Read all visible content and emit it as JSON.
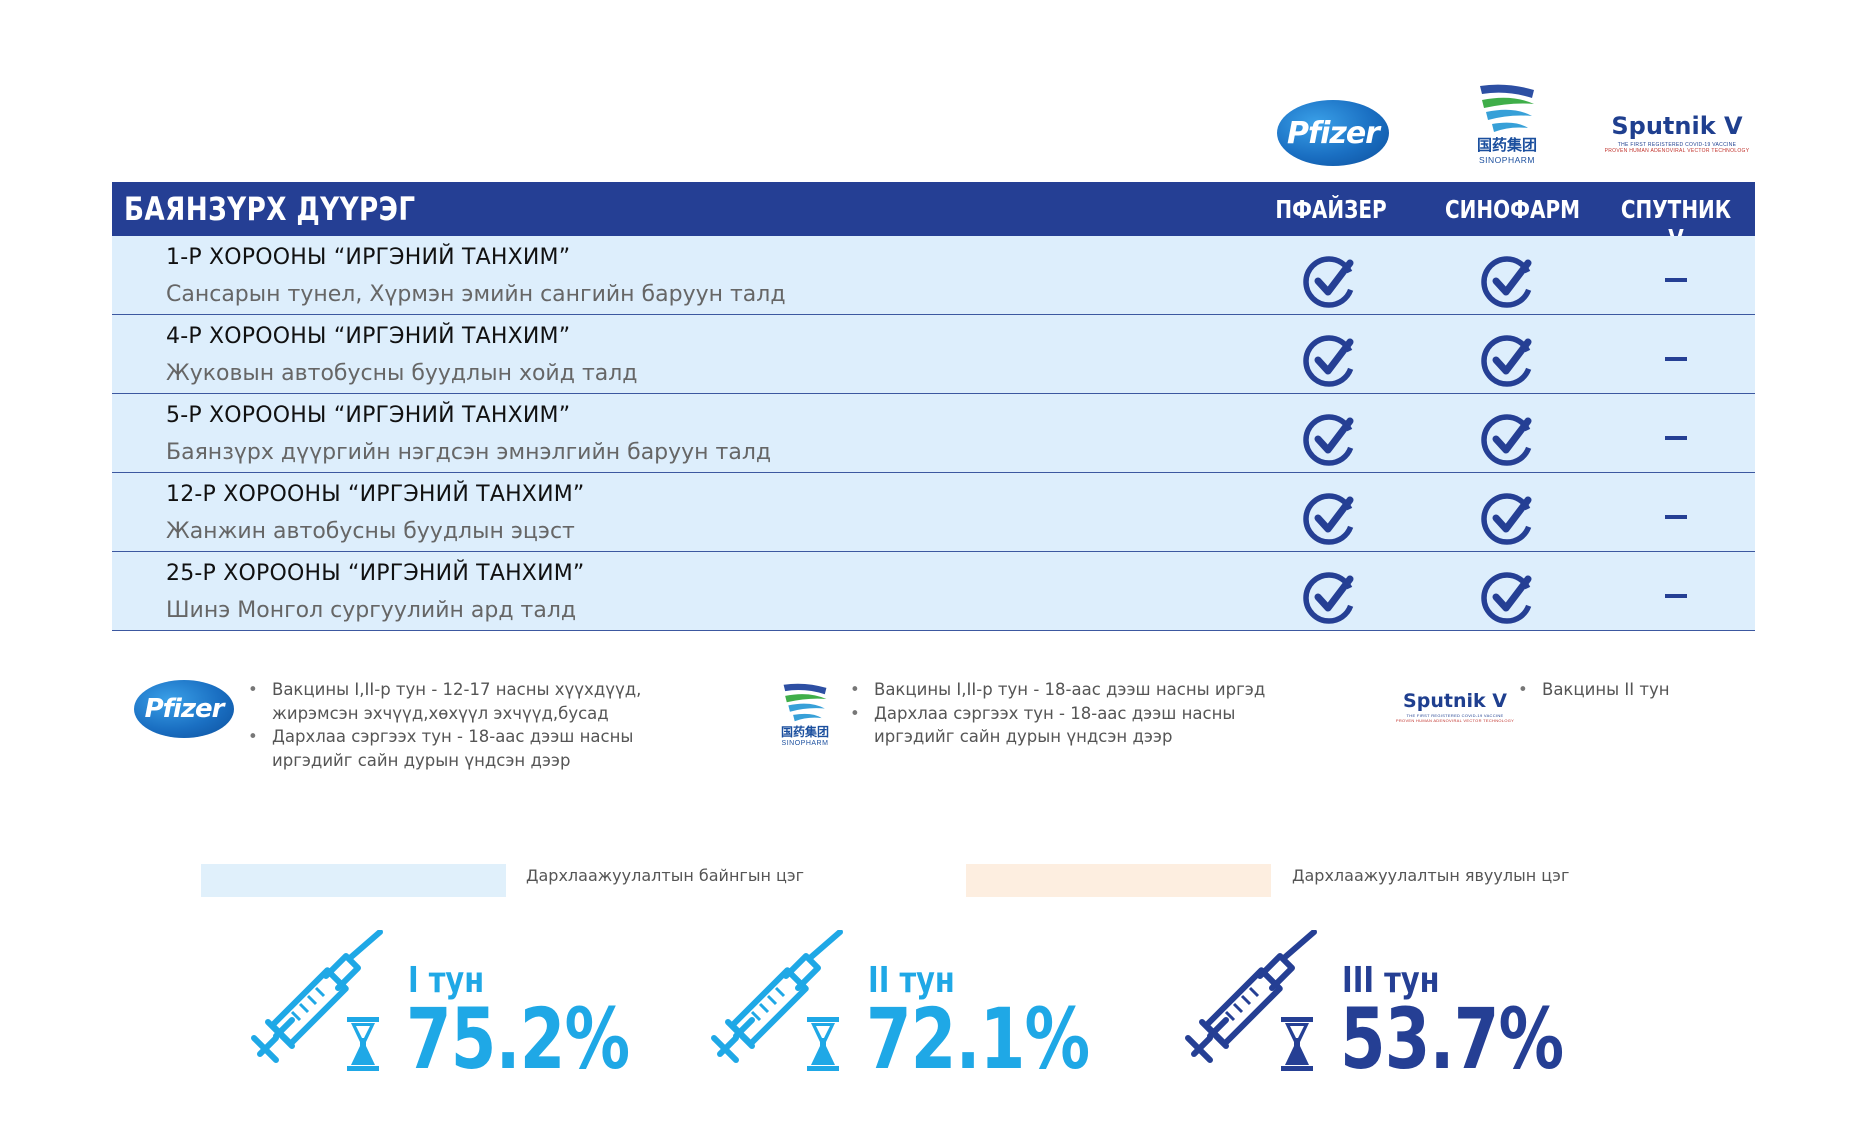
{
  "logos": {
    "pfizer": "Pfizer",
    "sinopharm_cn": "国药集团",
    "sinopharm_en": "SINOPHARM",
    "sputnik_name": "Sputnik V",
    "sputnik_line1": "THE FIRST REGISTERED COVID-19 VACCINE",
    "sputnik_line2": "PROVEN HUMAN ADENOVIRAL VECTOR TECHNOLOGY"
  },
  "table": {
    "district": "БАЯНЗҮРХ ДҮҮРЭГ",
    "columns": [
      "ПФАЙЗЕР",
      "СИНОФАРМ",
      "СПУТНИК V"
    ],
    "rows": [
      {
        "title": "1-Р ХОРООНЫ “ИРГЭНИЙ ТАНХИМ”",
        "address": "Сансарын тунел, Хүрмэн эмийн сангийн баруун талд",
        "pfizer": "check",
        "sinopharm": "check",
        "sputnik": "dash"
      },
      {
        "title": "4-Р ХОРООНЫ “ИРГЭНИЙ ТАНХИМ”",
        "address": "Жуковын автобусны буудлын хойд талд",
        "pfizer": "check",
        "sinopharm": "check",
        "sputnik": "dash"
      },
      {
        "title": "5-Р ХОРООНЫ “ИРГЭНИЙ ТАНХИМ”",
        "address": "Баянзүрх дүүргийн нэгдсэн эмнэлгийн баруун талд",
        "pfizer": "check",
        "sinopharm": "check",
        "sputnik": "dash"
      },
      {
        "title": "12-Р ХОРООНЫ “ИРГЭНИЙ ТАНХИМ”",
        "address": "Жанжин автобусны буудлын эцэст",
        "pfizer": "check",
        "sinopharm": "check",
        "sputnik": "dash"
      },
      {
        "title": "25-Р ХОРООНЫ “ИРГЭНИЙ ТАНХИМ”",
        "address": "Шинэ Монгол сургуулийн ард талд",
        "pfizer": "check",
        "sinopharm": "check",
        "sputnik": "dash"
      }
    ]
  },
  "notes": {
    "pfizer": [
      "Вакцины I,II-р тун - 12-17 насны хүүхдүүд,",
      "жирэмсэн эхчүүд,хөхүүл эхчүүд,бусад",
      "Дархлаа сэргээх тун - 18-аас дээш насны",
      "иргэдийг сайн дурын үндсэн дээр"
    ],
    "sinopharm": [
      "Вакцины I,II-р тун - 18-аас дээш насны иргэд",
      "Дархлаа сэргээх тун - 18-аас дээш насны",
      "иргэдийг сайн дурын үндсэн дээр"
    ],
    "sputnik": [
      "Вакцины II тун"
    ]
  },
  "legend": {
    "fixed": "Дархлаажуулалтын байнгын цэг",
    "mobile": "Дархлаажуулалтын явуулын цэг",
    "fixed_color": "#e0f0fb",
    "mobile_color": "#fdeee0"
  },
  "doses": [
    {
      "label": "I тун",
      "percent": "75.2%",
      "value": 75.2,
      "color": "#1fa8e6"
    },
    {
      "label": "II тун",
      "percent": "72.1%",
      "value": 72.1,
      "color": "#1fa8e6"
    },
    {
      "label": "III тун",
      "percent": "53.7%",
      "value": 53.7,
      "color": "#253f94"
    }
  ],
  "colors": {
    "header_bg": "#253f94",
    "row_bg": "#ddeefc",
    "check": "#253f94"
  }
}
